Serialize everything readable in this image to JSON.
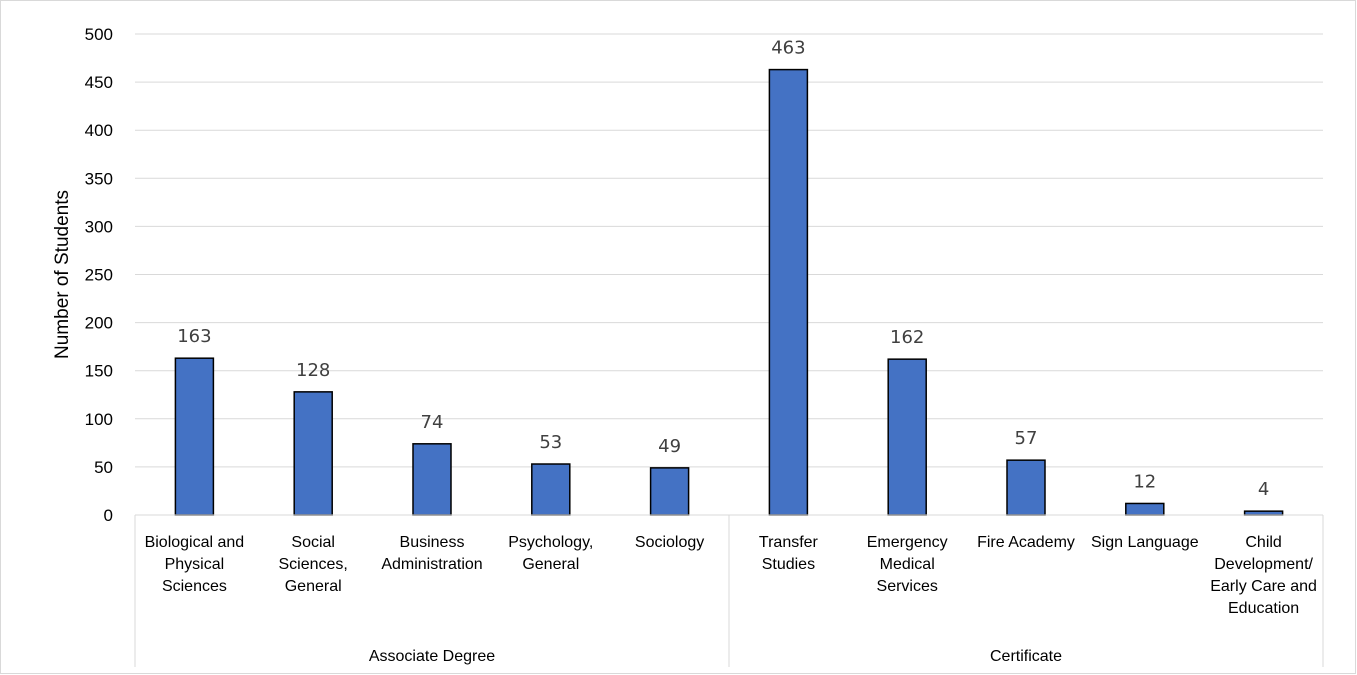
{
  "chart_data": {
    "type": "bar",
    "ylabel": "Number of Students",
    "xlabel": "",
    "ylim": [
      0,
      500
    ],
    "yticks": [
      0,
      50,
      100,
      150,
      200,
      250,
      300,
      350,
      400,
      450,
      500
    ],
    "grid": true,
    "bar_color": "#4472c4",
    "groups": [
      {
        "name": "Associate Degree",
        "categories": [
          "Biological and Physical Sciences",
          "Social Sciences, General",
          "Business Administration",
          "Psychology, General",
          "Sociology"
        ]
      },
      {
        "name": "Certificate",
        "categories": [
          "Transfer Studies",
          "Emergency Medical Services",
          "Fire Academy",
          "Sign Language",
          "Child Development/ Early Care and Education"
        ]
      }
    ],
    "categories": [
      "Biological and Physical Sciences",
      "Social Sciences, General",
      "Business Administration",
      "Psychology, General",
      "Sociology",
      "Transfer Studies",
      "Emergency Medical Services",
      "Fire Academy",
      "Sign Language",
      "Child Development/ Early Care and Education"
    ],
    "category_lines": [
      [
        "Biological and",
        "Physical",
        "Sciences"
      ],
      [
        "Social",
        "Sciences,",
        "General"
      ],
      [
        "Business",
        "Administration"
      ],
      [
        "Psychology,",
        "General"
      ],
      [
        "Sociology"
      ],
      [
        "Transfer",
        "Studies"
      ],
      [
        "Emergency",
        "Medical",
        "Services"
      ],
      [
        "Fire Academy"
      ],
      [
        "Sign Language"
      ],
      [
        "Child",
        "Development/",
        "Early Care and",
        "Education"
      ]
    ],
    "values": [
      163,
      128,
      74,
      53,
      49,
      463,
      162,
      57,
      12,
      4
    ]
  }
}
